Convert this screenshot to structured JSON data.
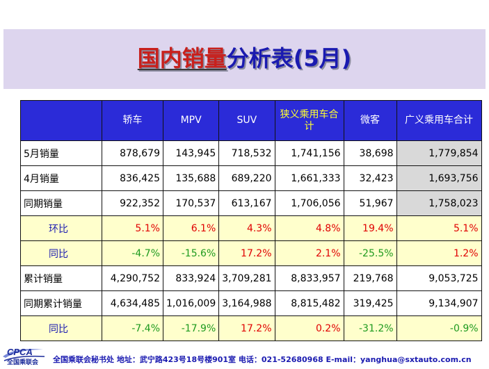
{
  "title": {
    "part1": "国内销量",
    "part2": "分析表(5月)"
  },
  "columns": [
    "",
    "轿车",
    "MPV",
    "SUV",
    "狭义乘用车合计",
    "微客",
    "广义乘用车合计"
  ],
  "rows": [
    {
      "label": "5月销量",
      "values": [
        "878,679",
        "143,945",
        "718,532",
        "1,741,156",
        "38,698",
        "1,779,854"
      ]
    },
    {
      "label": "4月销量",
      "values": [
        "836,425",
        "135,688",
        "689,220",
        "1,661,333",
        "32,423",
        "1,693,756"
      ]
    },
    {
      "label": "同期销量",
      "values": [
        "922,352",
        "170,537",
        "613,167",
        "1,706,056",
        "51,967",
        "1,758,023"
      ]
    },
    {
      "label": "环比",
      "values": [
        "5.1%",
        "6.1%",
        "4.3%",
        "4.8%",
        "19.4%",
        "5.1%"
      ]
    },
    {
      "label": "同比",
      "values": [
        "-4.7%",
        "-15.6%",
        "17.2%",
        "2.1%",
        "-25.5%",
        "1.2%"
      ]
    },
    {
      "label": "累计销量",
      "values": [
        "4,290,752",
        "833,924",
        "3,709,281",
        "8,833,957",
        "219,768",
        "9,053,725"
      ]
    },
    {
      "label": "同期累计销量",
      "values": [
        "4,634,485",
        "1,016,009",
        "3,164,988",
        "8,815,482",
        "319,425",
        "9,134,907"
      ]
    },
    {
      "label": "同比",
      "values": [
        "-7.4%",
        "-17.9%",
        "17.2%",
        "0.2%",
        "-31.2%",
        "-0.9%"
      ]
    }
  ],
  "colors": {
    "header_bg": "#2b2bd8",
    "positive": "#e00000",
    "negative": "#1e9a1e",
    "highlight_row": "#ffffcc",
    "total_col": "#d9d9d9"
  },
  "footer": {
    "logo": "CPCA",
    "logo_sub": "全国乘联会",
    "text": "全国乘联会秘书处  地址：武宁路423号18号楼901室    电话：021-52680968   E-mail：yanghua@sxtauto.com.cn"
  }
}
